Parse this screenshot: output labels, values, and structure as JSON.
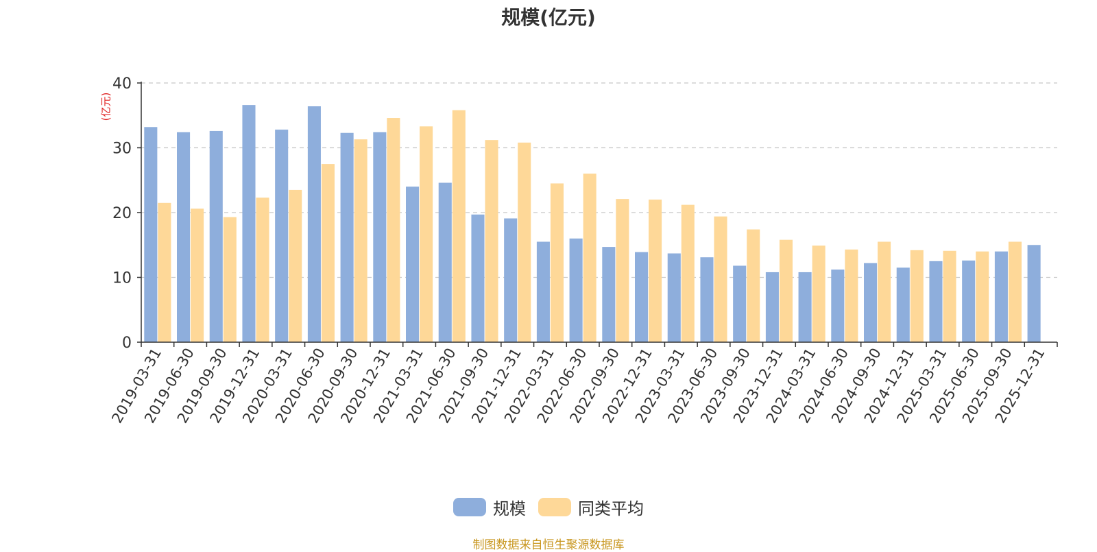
{
  "title": "规模(亿元)",
  "y_unit": "(亿元)",
  "legend": [
    {
      "name": "规模",
      "color": "#8eaedc"
    },
    {
      "name": "同类平均",
      "color": "#fed898"
    }
  ],
  "source_text": "制图数据来自恒生聚源数据库",
  "chart_data": {
    "type": "bar",
    "title": "规模(亿元)",
    "ylabel": "(亿元)",
    "ylim": [
      0,
      40
    ],
    "yticks": [
      0,
      10,
      20,
      30,
      40
    ],
    "grid": true,
    "legend_position": "bottom",
    "categories": [
      "2019-03-31",
      "2019-06-30",
      "2019-09-30",
      "2019-12-31",
      "2020-03-31",
      "2020-06-30",
      "2020-09-30",
      "2020-12-31",
      "2021-03-31",
      "2021-06-30",
      "2021-09-30",
      "2021-12-31",
      "2022-03-31",
      "2022-06-30",
      "2022-09-30",
      "2022-12-31",
      "2023-03-31",
      "2023-06-30",
      "2023-09-30",
      "2023-12-31",
      "2024-03-31",
      "2024-06-30",
      "2024-09-30",
      "2024-12-31",
      "2025-03-31",
      "2025-06-30",
      "2025-09-30",
      "2025-12-31"
    ],
    "series": [
      {
        "name": "规模",
        "color": "#8eaedc",
        "values": [
          33.2,
          32.4,
          32.6,
          36.6,
          32.8,
          36.4,
          32.3,
          32.4,
          24.0,
          24.6,
          19.7,
          19.1,
          15.5,
          16.0,
          14.7,
          13.9,
          13.7,
          13.1,
          11.8,
          10.8,
          10.8,
          11.2,
          12.2,
          11.5,
          12.5,
          12.6,
          14.0,
          15.0
        ]
      },
      {
        "name": "同类平均",
        "color": "#fed898",
        "values": [
          21.5,
          20.6,
          19.3,
          22.3,
          23.5,
          27.5,
          31.3,
          34.6,
          33.3,
          35.8,
          31.2,
          30.8,
          24.5,
          26.0,
          22.1,
          22.0,
          21.2,
          19.4,
          17.4,
          15.8,
          14.9,
          14.3,
          15.5,
          14.2,
          14.1,
          14.0,
          15.5,
          null
        ]
      }
    ]
  }
}
